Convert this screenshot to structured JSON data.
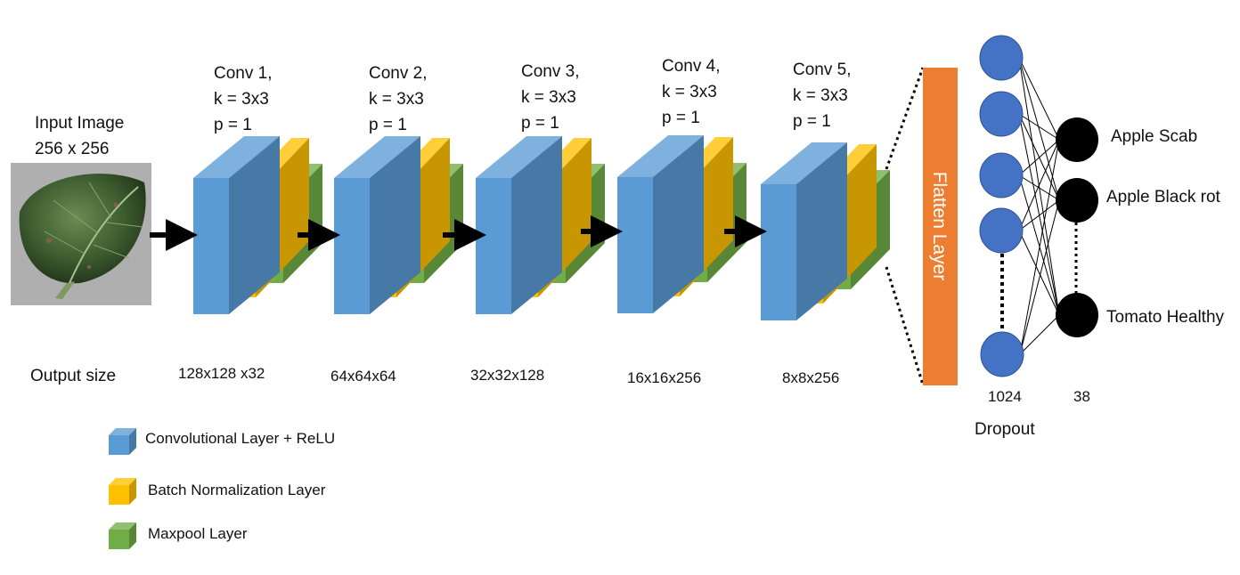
{
  "input": {
    "title_line1": "Input Image",
    "title_line2": "256 x 256"
  },
  "conv_blocks": [
    {
      "name": "Conv 1,",
      "kernel": "k = 3x3",
      "padding": "p = 1",
      "output": "128x128 x32"
    },
    {
      "name": "Conv 2,",
      "kernel": "k = 3x3",
      "padding": "p = 1",
      "output": "64x64x64"
    },
    {
      "name": "Conv 3,",
      "kernel": "k = 3x3",
      "padding": "p = 1",
      "output": "32x32x128"
    },
    {
      "name": "Conv 4,",
      "kernel": "k = 3x3",
      "padding": "p = 1",
      "output": "16x16x256"
    },
    {
      "name": "Conv 5,",
      "kernel": "k = 3x3",
      "padding": "p = 1",
      "output": "8x8x256"
    }
  ],
  "output_size_label": "Output size",
  "flatten_label": "Flatten Layer",
  "dense": {
    "units": "1024",
    "label": "Dropout"
  },
  "classes": {
    "count": "38",
    "items": [
      "Apple Scab",
      "Apple Black rot",
      "Tomato Healthy"
    ]
  },
  "legend": [
    {
      "label": "Convolutional Layer + ReLU",
      "color": "#5b9bd5"
    },
    {
      "label": "Batch Normalization Layer",
      "color": "#ffc000"
    },
    {
      "label": "Maxpool Layer",
      "color": "#70ad47"
    }
  ],
  "colors": {
    "conv": "#5b9bd5",
    "batchnorm": "#ffc000",
    "maxpool": "#70ad47",
    "flatten": "#ed7d31",
    "dense_node": "#4472c4",
    "output_node": "#000000"
  }
}
